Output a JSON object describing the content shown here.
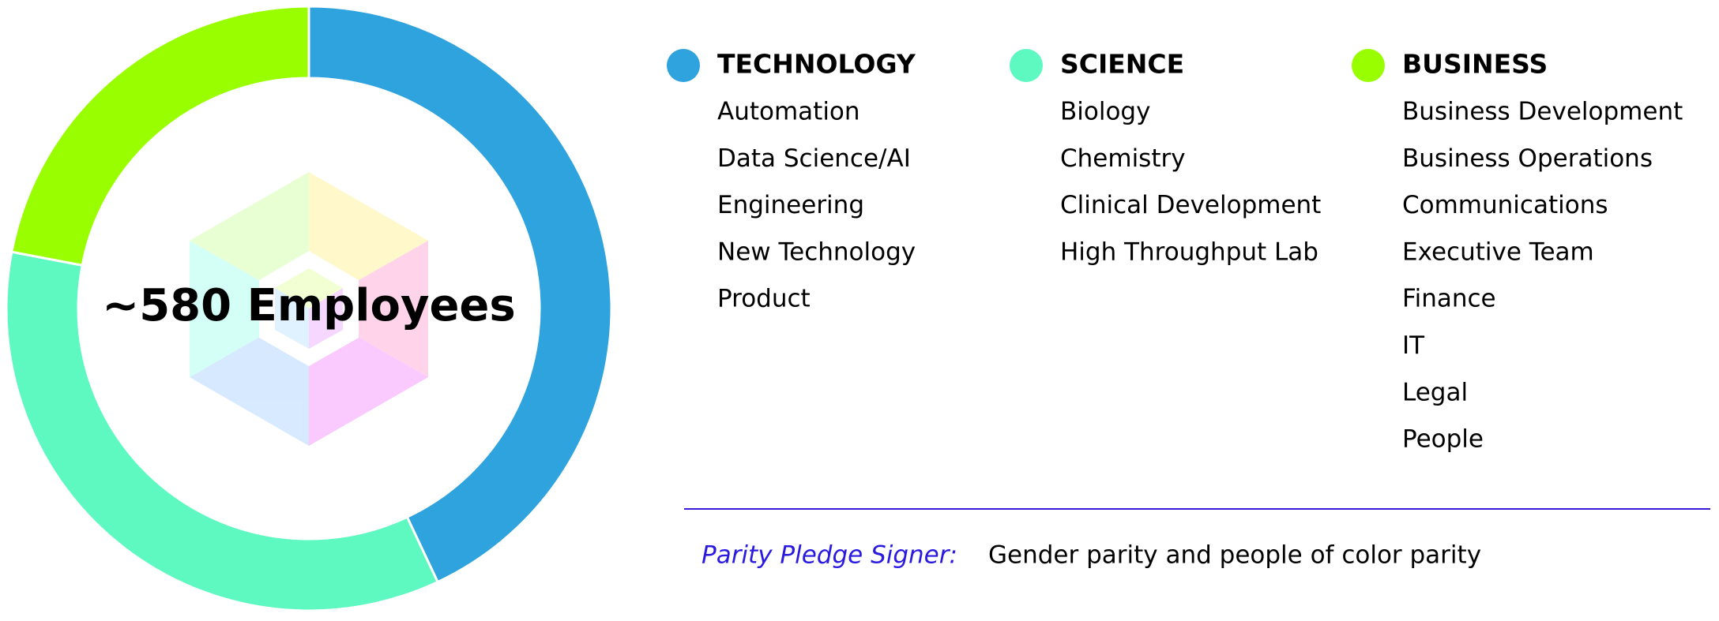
{
  "chart_data": {
    "type": "donut",
    "title": "~580 Employees",
    "categories": [
      "TECHNOLOGY",
      "SCIENCE",
      "BUSINESS"
    ],
    "values": [
      43,
      35,
      22
    ],
    "colors": [
      "#2ea3dd",
      "#5ef9c0",
      "#99ff00"
    ],
    "items": [
      [
        "Automation",
        "Data Science/AI",
        "Engineering",
        "New Technology",
        "Product"
      ],
      [
        "Biology",
        "Chemistry",
        "Clinical Development",
        "High Throughput Lab"
      ],
      [
        "Business Development",
        "Business Operations",
        "Communications",
        "Executive Team",
        "Finance",
        "IT",
        "Legal",
        "People"
      ]
    ],
    "note_label": "Parity Pledge Signer:",
    "note": "Gender parity and people of color parity"
  }
}
